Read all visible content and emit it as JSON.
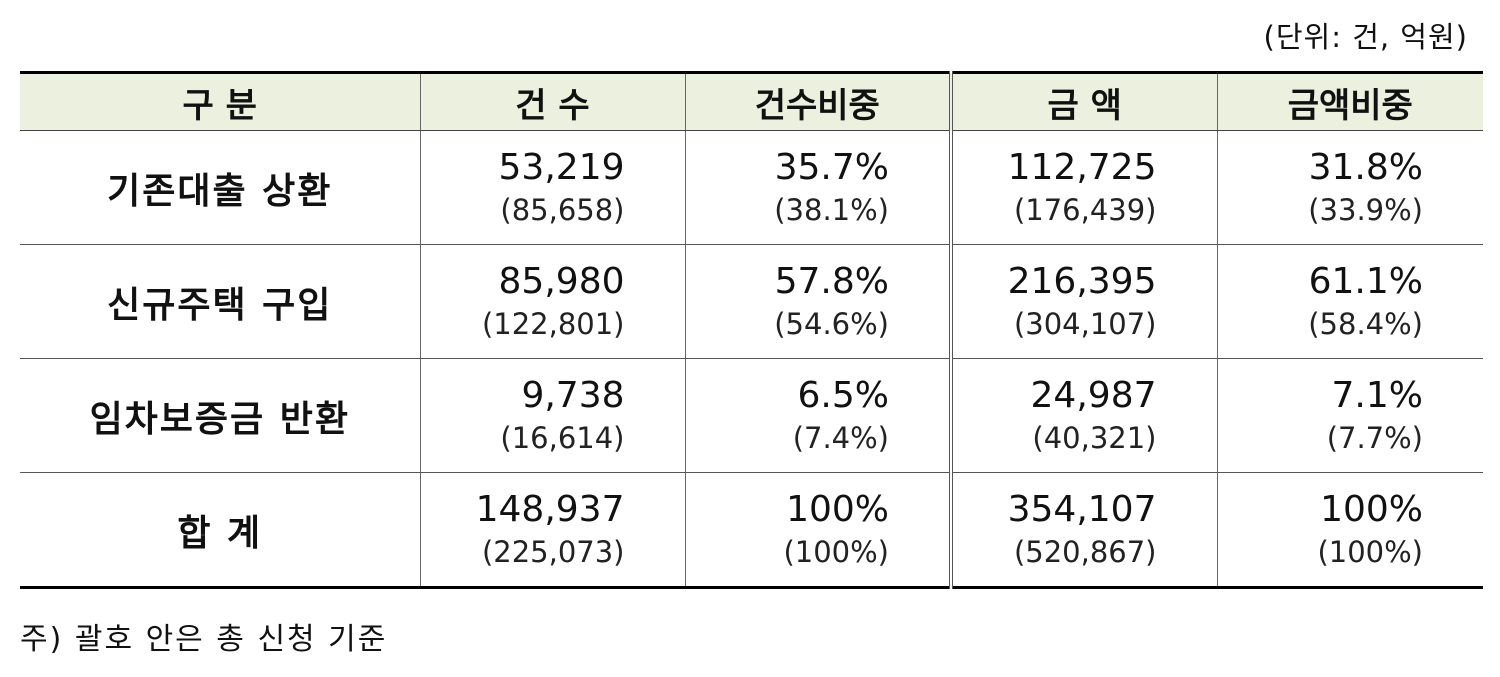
{
  "unit_label": "(단위: 건, 억원)",
  "table": {
    "headers": {
      "category": "구 분",
      "count": "건 수",
      "count_share": "건수비중",
      "amount": "금 액",
      "amount_share": "금액비중"
    },
    "rows": [
      {
        "category": "기존대출 상환",
        "count": "53,219",
        "count_total": "(85,658)",
        "count_share": "35.7%",
        "count_share_total": "(38.1%)",
        "amount": "112,725",
        "amount_total": "(176,439)",
        "amount_share": "31.8%",
        "amount_share_total": "(33.9%)"
      },
      {
        "category": "신규주택 구입",
        "count": "85,980",
        "count_total": "(122,801)",
        "count_share": "57.8%",
        "count_share_total": "(54.6%)",
        "amount": "216,395",
        "amount_total": "(304,107)",
        "amount_share": "61.1%",
        "amount_share_total": "(58.4%)"
      },
      {
        "category": "임차보증금 반환",
        "count": "9,738",
        "count_total": "(16,614)",
        "count_share": "6.5%",
        "count_share_total": "(7.4%)",
        "amount": "24,987",
        "amount_total": "(40,321)",
        "amount_share": "7.1%",
        "amount_share_total": "(7.7%)"
      },
      {
        "category": "합 계",
        "count": "148,937",
        "count_total": "(225,073)",
        "count_share": "100%",
        "count_share_total": "(100%)",
        "amount": "354,107",
        "amount_total": "(520,867)",
        "amount_share": "100%",
        "amount_share_total": "(100%)"
      }
    ]
  },
  "footnote": "주) 괄호 안은 총 신청 기준",
  "colors": {
    "header_bg": "#ebf1de",
    "border": "#000000"
  }
}
